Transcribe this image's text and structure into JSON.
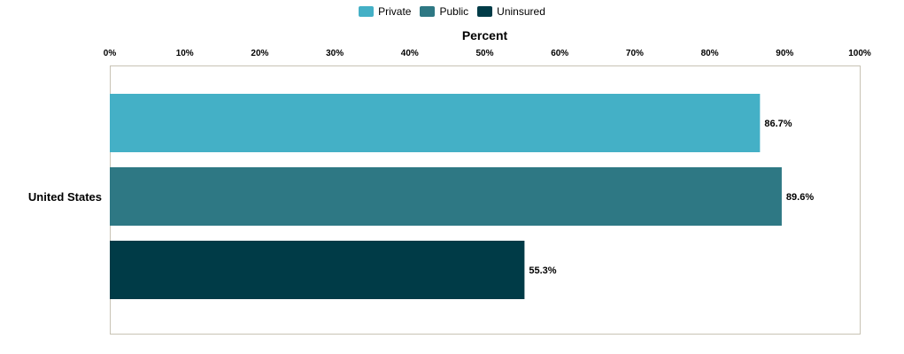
{
  "chart_data": {
    "type": "bar",
    "orientation": "horizontal",
    "title": "",
    "xlabel": "Percent",
    "ylabel": "",
    "xlim": [
      0,
      100
    ],
    "x_ticks": [
      "0%",
      "10%",
      "20%",
      "30%",
      "40%",
      "50%",
      "60%",
      "70%",
      "80%",
      "90%",
      "100%"
    ],
    "categories": [
      "United States"
    ],
    "series": [
      {
        "name": "Private",
        "values": [
          86.7
        ],
        "labels": [
          "86.7%"
        ],
        "color": "#44b0c6"
      },
      {
        "name": "Public",
        "values": [
          89.6
        ],
        "labels": [
          "89.6%"
        ],
        "color": "#2e7884"
      },
      {
        "name": "Uninsured",
        "values": [
          55.3
        ],
        "labels": [
          "55.3%"
        ],
        "color": "#003b47"
      }
    ],
    "legend_position": "top-center",
    "grid": false,
    "axis_position": "top"
  }
}
